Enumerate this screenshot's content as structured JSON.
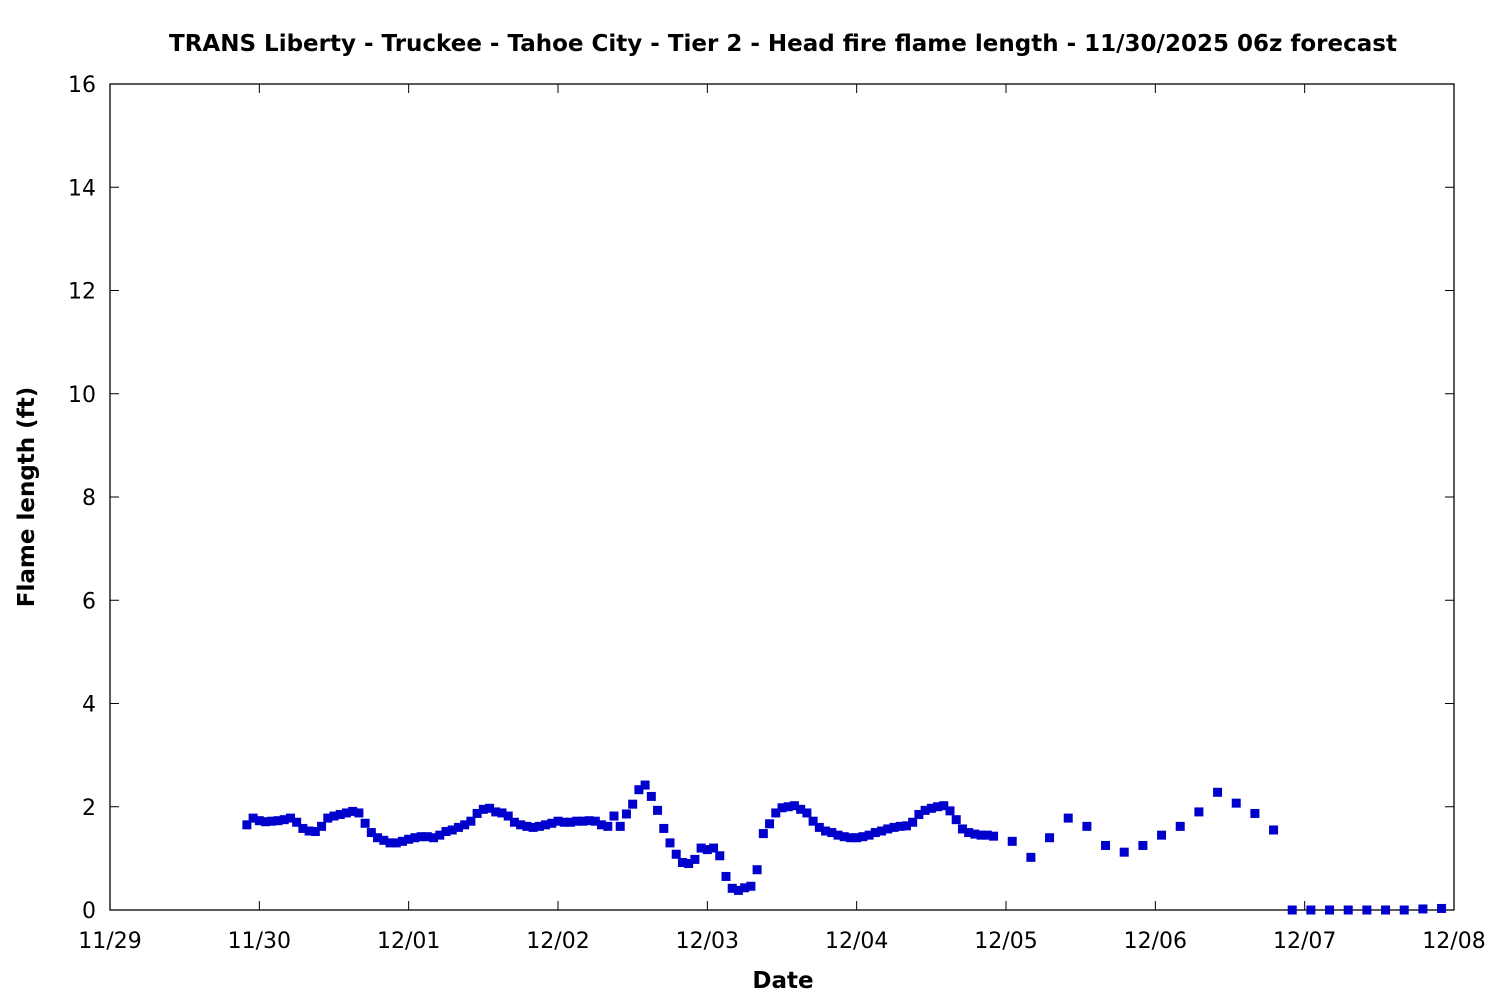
{
  "chart_data": {
    "type": "scatter",
    "title": "TRANS Liberty - Truckee - Tahoe City - Tier 2 - Head fire flame length - 11/30/2025 06z forecast",
    "xlabel": "Date",
    "ylabel": "Flame length (ft)",
    "x_axis": {
      "type": "date",
      "start": "2025-11-29T00:00",
      "end": "2025-12-08T00:00",
      "tick_labels": [
        "11/29",
        "11/30",
        "12/01",
        "12/02",
        "12/03",
        "12/04",
        "12/05",
        "12/06",
        "12/07",
        "12/08"
      ]
    },
    "ylim": [
      0,
      16
    ],
    "y_ticks": [
      0,
      2,
      4,
      6,
      8,
      10,
      12,
      14,
      16
    ],
    "grid": false,
    "legend": "none",
    "marker_color": "#0000cc",
    "series": [
      {
        "x": [
          "2025-11-29T22:00",
          "2025-11-29T23:00",
          "2025-11-30T00:00",
          "2025-11-30T01:00",
          "2025-11-30T02:00",
          "2025-11-30T03:00",
          "2025-11-30T04:00",
          "2025-11-30T05:00",
          "2025-11-30T06:00",
          "2025-11-30T07:00",
          "2025-11-30T08:00",
          "2025-11-30T09:00",
          "2025-11-30T10:00",
          "2025-11-30T11:00",
          "2025-11-30T12:00",
          "2025-11-30T13:00",
          "2025-11-30T14:00",
          "2025-11-30T15:00",
          "2025-11-30T16:00",
          "2025-11-30T17:00",
          "2025-11-30T18:00",
          "2025-11-30T19:00",
          "2025-11-30T20:00",
          "2025-11-30T21:00",
          "2025-11-30T22:00",
          "2025-11-30T23:00",
          "2025-12-01T00:00",
          "2025-12-01T01:00",
          "2025-12-01T02:00",
          "2025-12-01T03:00",
          "2025-12-01T04:00",
          "2025-12-01T05:00",
          "2025-12-01T06:00",
          "2025-12-01T07:00",
          "2025-12-01T08:00",
          "2025-12-01T09:00",
          "2025-12-01T10:00",
          "2025-12-01T11:00",
          "2025-12-01T12:00",
          "2025-12-01T13:00",
          "2025-12-01T14:00",
          "2025-12-01T15:00",
          "2025-12-01T16:00",
          "2025-12-01T17:00",
          "2025-12-01T18:00",
          "2025-12-01T19:00",
          "2025-12-01T20:00",
          "2025-12-01T21:00",
          "2025-12-01T22:00",
          "2025-12-01T23:00",
          "2025-12-02T00:00",
          "2025-12-02T01:00",
          "2025-12-02T02:00",
          "2025-12-02T03:00",
          "2025-12-02T04:00",
          "2025-12-02T05:00",
          "2025-12-02T06:00",
          "2025-12-02T07:00",
          "2025-12-02T08:00",
          "2025-12-02T09:00",
          "2025-12-02T10:00",
          "2025-12-02T11:00",
          "2025-12-02T12:00",
          "2025-12-02T13:00",
          "2025-12-02T14:00",
          "2025-12-02T15:00",
          "2025-12-02T16:00",
          "2025-12-02T17:00",
          "2025-12-02T18:00",
          "2025-12-02T19:00",
          "2025-12-02T20:00",
          "2025-12-02T21:00",
          "2025-12-02T22:00",
          "2025-12-02T23:00",
          "2025-12-03T00:00",
          "2025-12-03T01:00",
          "2025-12-03T02:00",
          "2025-12-03T03:00",
          "2025-12-03T04:00",
          "2025-12-03T05:00",
          "2025-12-03T06:00",
          "2025-12-03T07:00",
          "2025-12-03T08:00",
          "2025-12-03T09:00",
          "2025-12-03T10:00",
          "2025-12-03T11:00",
          "2025-12-03T12:00",
          "2025-12-03T13:00",
          "2025-12-03T14:00",
          "2025-12-03T15:00",
          "2025-12-03T16:00",
          "2025-12-03T17:00",
          "2025-12-03T18:00",
          "2025-12-03T19:00",
          "2025-12-03T20:00",
          "2025-12-03T21:00",
          "2025-12-03T22:00",
          "2025-12-03T23:00",
          "2025-12-04T00:00",
          "2025-12-04T01:00",
          "2025-12-04T02:00",
          "2025-12-04T03:00",
          "2025-12-04T04:00",
          "2025-12-04T05:00",
          "2025-12-04T06:00",
          "2025-12-04T07:00",
          "2025-12-04T08:00",
          "2025-12-04T09:00",
          "2025-12-04T10:00",
          "2025-12-04T11:00",
          "2025-12-04T12:00",
          "2025-12-04T13:00",
          "2025-12-04T14:00",
          "2025-12-04T15:00",
          "2025-12-04T16:00",
          "2025-12-04T17:00",
          "2025-12-04T18:00",
          "2025-12-04T19:00",
          "2025-12-04T20:00",
          "2025-12-04T21:00",
          "2025-12-04T22:00",
          "2025-12-05T01:00",
          "2025-12-05T04:00",
          "2025-12-05T07:00",
          "2025-12-05T10:00",
          "2025-12-05T13:00",
          "2025-12-05T16:00",
          "2025-12-05T19:00",
          "2025-12-05T22:00",
          "2025-12-06T01:00",
          "2025-12-06T04:00",
          "2025-12-06T07:00",
          "2025-12-06T10:00",
          "2025-12-06T13:00",
          "2025-12-06T16:00",
          "2025-12-06T19:00",
          "2025-12-06T22:00",
          "2025-12-07T01:00",
          "2025-12-07T04:00",
          "2025-12-07T07:00",
          "2025-12-07T10:00",
          "2025-12-07T13:00",
          "2025-12-07T16:00",
          "2025-12-07T19:00",
          "2025-12-07T22:00"
        ],
        "y": [
          1.65,
          1.78,
          1.73,
          1.71,
          1.72,
          1.73,
          1.75,
          1.78,
          1.7,
          1.58,
          1.53,
          1.52,
          1.62,
          1.78,
          1.82,
          1.85,
          1.88,
          1.91,
          1.88,
          1.68,
          1.5,
          1.4,
          1.35,
          1.3,
          1.3,
          1.33,
          1.37,
          1.4,
          1.42,
          1.42,
          1.4,
          1.45,
          1.52,
          1.55,
          1.6,
          1.65,
          1.72,
          1.87,
          1.95,
          1.97,
          1.9,
          1.88,
          1.82,
          1.7,
          1.65,
          1.62,
          1.6,
          1.62,
          1.65,
          1.68,
          1.72,
          1.7,
          1.7,
          1.72,
          1.72,
          1.73,
          1.72,
          1.65,
          1.62,
          1.82,
          1.62,
          1.86,
          2.05,
          2.33,
          2.42,
          2.2,
          1.93,
          1.58,
          1.3,
          1.08,
          0.92,
          0.9,
          0.98,
          1.2,
          1.17,
          1.2,
          1.05,
          0.65,
          0.42,
          0.38,
          0.43,
          0.46,
          0.78,
          1.48,
          1.67,
          1.88,
          1.98,
          2.0,
          2.02,
          1.95,
          1.88,
          1.72,
          1.6,
          1.53,
          1.5,
          1.45,
          1.42,
          1.4,
          1.4,
          1.42,
          1.45,
          1.5,
          1.53,
          1.57,
          1.6,
          1.62,
          1.63,
          1.7,
          1.85,
          1.93,
          1.97,
          2.0,
          2.02,
          1.92,
          1.75,
          1.57,
          1.5,
          1.47,
          1.45,
          1.45,
          1.43,
          1.33,
          1.02,
          1.4,
          1.78,
          1.62,
          1.25,
          1.12,
          1.25,
          1.45,
          1.62,
          1.9,
          2.28,
          2.07,
          1.87,
          1.55,
          0.0,
          0.0,
          0.0,
          0.0,
          0.0,
          0.0,
          0.0,
          0.02,
          0.03
        ]
      }
    ]
  }
}
